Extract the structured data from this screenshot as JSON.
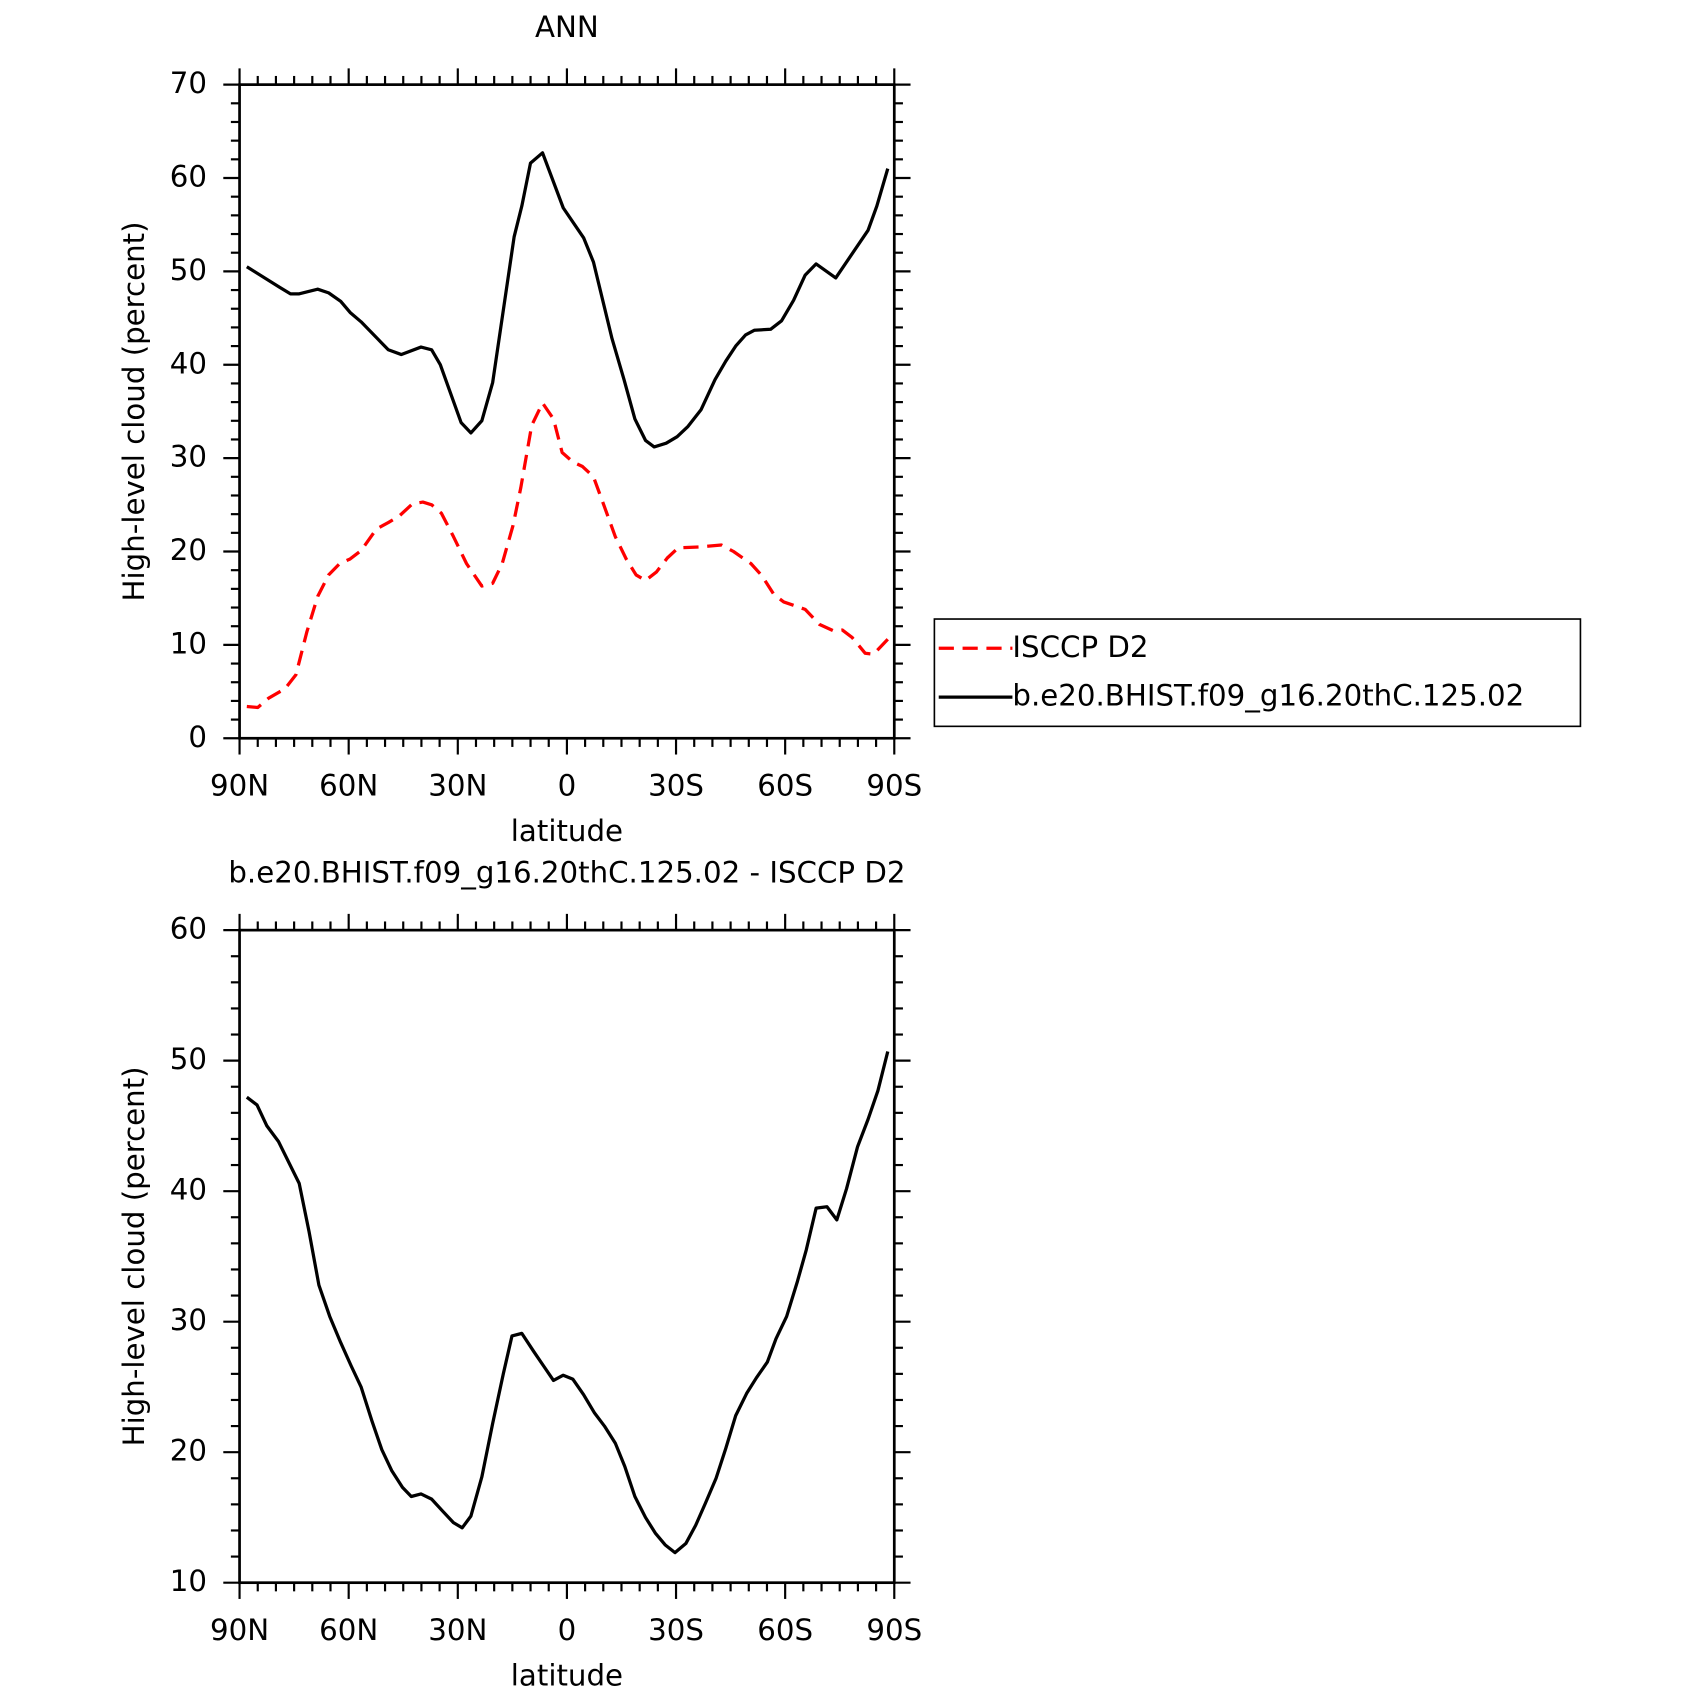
{
  "chart_data": [
    {
      "type": "line",
      "title": "ANN",
      "xlabel": "latitude",
      "ylabel": "High-level cloud (percent)",
      "xlim": [
        90,
        -90
      ],
      "xticks": [
        {
          "value": 90,
          "label": "90N"
        },
        {
          "value": 60,
          "label": "60N"
        },
        {
          "value": 30,
          "label": "30N"
        },
        0,
        {
          "value": -30,
          "label": "30S"
        },
        {
          "value": -60,
          "label": "60S"
        },
        {
          "value": -90,
          "label": "90S"
        }
      ],
      "ylim": [
        0,
        70
      ],
      "yticks": [
        0,
        10,
        20,
        30,
        40,
        50,
        60,
        70
      ],
      "legend": "right",
      "series": [
        {
          "name": "ISCCP D2",
          "color": "#ff0000",
          "dash": true,
          "x": [
            88,
            85,
            82,
            77.5,
            74.5,
            71.5,
            68.5,
            65.5,
            62.5,
            59.6,
            56.6,
            52.4,
            49.1,
            46.1,
            42.5,
            39.6,
            37.2,
            34.5,
            31.2,
            27.6,
            23.4,
            20.4,
            17.8,
            14.8,
            12.7,
            9.7,
            6.7,
            3.7,
            1.3,
            -1.6,
            -4.3,
            -7.3,
            -10.3,
            -13.3,
            -16.3,
            -19,
            -21.6,
            -24.6,
            -27.6,
            -30.6,
            -36.9,
            -42.5,
            -45.8,
            -50.6,
            -53.6,
            -56.9,
            -59.6,
            -65.5,
            -69.4,
            -73.3,
            -75.7,
            -78.4,
            -82,
            -84.3,
            -88.2
          ],
          "values": [
            3.4,
            3.3,
            4.3,
            5.3,
            6.8,
            11.4,
            15.2,
            17.5,
            18.7,
            19.2,
            20.1,
            22.4,
            23.1,
            23.8,
            25.1,
            25.3,
            25.0,
            24.1,
            21.6,
            18.7,
            16.3,
            16.6,
            18.7,
            22.8,
            26.8,
            33.5,
            35.9,
            34.2,
            30.6,
            29.6,
            29.1,
            28.0,
            24.8,
            21.6,
            19.2,
            17.5,
            16.9,
            17.8,
            19.3,
            20.4,
            20.5,
            20.7,
            20.0,
            18.7,
            17.4,
            15.4,
            14.6,
            13.8,
            12.2,
            11.5,
            11.6,
            10.8,
            9.1,
            9.0,
            10.6
          ]
        },
        {
          "name": "b.e20.BHIST.f09_g16.20thC.125.02",
          "color": "#000000",
          "x": [
            88,
            79,
            76,
            73.6,
            68.5,
            65.5,
            62.2,
            59.6,
            56.6,
            49.1,
            45.5,
            40.1,
            37.2,
            34.8,
            29.1,
            26.4,
            23.4,
            20.4,
            14.5,
            12.4,
            10,
            6.7,
            1,
            -4.6,
            -7.3,
            -12.4,
            -15.7,
            -18.7,
            -21.6,
            -24,
            -27.3,
            -30.3,
            -33.3,
            -36.9,
            -40.7,
            -43.7,
            -46.4,
            -49.1,
            -51.5,
            -56,
            -59,
            -62.3,
            -65.5,
            -68.5,
            -73.9,
            -82.8,
            -85.2,
            -88.2
          ],
          "values": [
            50.5,
            48.3,
            47.6,
            47.6,
            48.1,
            47.7,
            46.8,
            45.6,
            44.6,
            41.6,
            41.1,
            41.9,
            41.6,
            40.0,
            33.8,
            32.7,
            34.0,
            38.1,
            53.7,
            57.0,
            61.6,
            62.7,
            56.8,
            53.6,
            51.0,
            42.8,
            38.4,
            34.2,
            31.9,
            31.2,
            31.6,
            32.3,
            33.4,
            35.2,
            38.4,
            40.4,
            42.0,
            43.2,
            43.7,
            43.8,
            44.7,
            46.9,
            49.6,
            50.8,
            49.3,
            54.4,
            57.0,
            61.0
          ]
        }
      ]
    },
    {
      "type": "line",
      "title": "b.e20.BHIST.f09_g16.20thC.125.02 - ISCCP D2",
      "xlabel": "latitude",
      "ylabel": "High-level cloud (percent)",
      "xlim": [
        90,
        -90
      ],
      "xticks": [
        {
          "value": 90,
          "label": "90N"
        },
        {
          "value": 60,
          "label": "60N"
        },
        {
          "value": 30,
          "label": "30N"
        },
        0,
        {
          "value": -30,
          "label": "30S"
        },
        {
          "value": -60,
          "label": "60S"
        },
        {
          "value": -90,
          "label": "90S"
        }
      ],
      "ylim": [
        10,
        60
      ],
      "yticks": [
        10,
        20,
        30,
        40,
        50,
        60
      ],
      "series": [
        {
          "color": "#000000",
          "x": [
            88,
            85.2,
            82.5,
            79.3,
            73.6,
            70.9,
            68.2,
            65.2,
            62.2,
            59.3,
            56.6,
            53.6,
            50.9,
            48.2,
            45.2,
            42.8,
            40.1,
            37.2,
            34.2,
            31.2,
            28.8,
            26.4,
            23.4,
            20.4,
            17.5,
            15.1,
            12.4,
            9.1,
            6.4,
            3.7,
            1,
            -1.6,
            -4.6,
            -7.6,
            -10.3,
            -13.3,
            -15.9,
            -18.7,
            -21.6,
            -24.3,
            -27,
            -29.7,
            -32.7,
            -35.4,
            -38.1,
            -41,
            -43.7,
            -46.4,
            -49.4,
            -52.1,
            -55.1,
            -57.5,
            -60.4,
            -63.4,
            -65.8,
            -68.5,
            -71.5,
            -74.2,
            -76.9,
            -79.9,
            -82.8,
            -85.5,
            -88.2
          ],
          "values": [
            47.2,
            46.6,
            45.0,
            43.8,
            40.6,
            36.9,
            32.8,
            30.4,
            28.4,
            26.6,
            25.0,
            22.4,
            20.2,
            18.6,
            17.3,
            16.6,
            16.8,
            16.4,
            15.5,
            14.6,
            14.2,
            15.1,
            18.1,
            22.2,
            26.0,
            28.9,
            29.1,
            27.7,
            26.6,
            25.5,
            25.9,
            25.6,
            24.4,
            23.0,
            22.0,
            20.7,
            18.9,
            16.6,
            15.0,
            13.8,
            12.9,
            12.3,
            13.0,
            14.4,
            16.1,
            18.0,
            20.3,
            22.8,
            24.5,
            25.7,
            26.9,
            28.7,
            30.4,
            33.1,
            35.5,
            38.7,
            38.8,
            37.8,
            40.2,
            43.4,
            45.5,
            47.7,
            50.7
          ]
        }
      ]
    }
  ]
}
